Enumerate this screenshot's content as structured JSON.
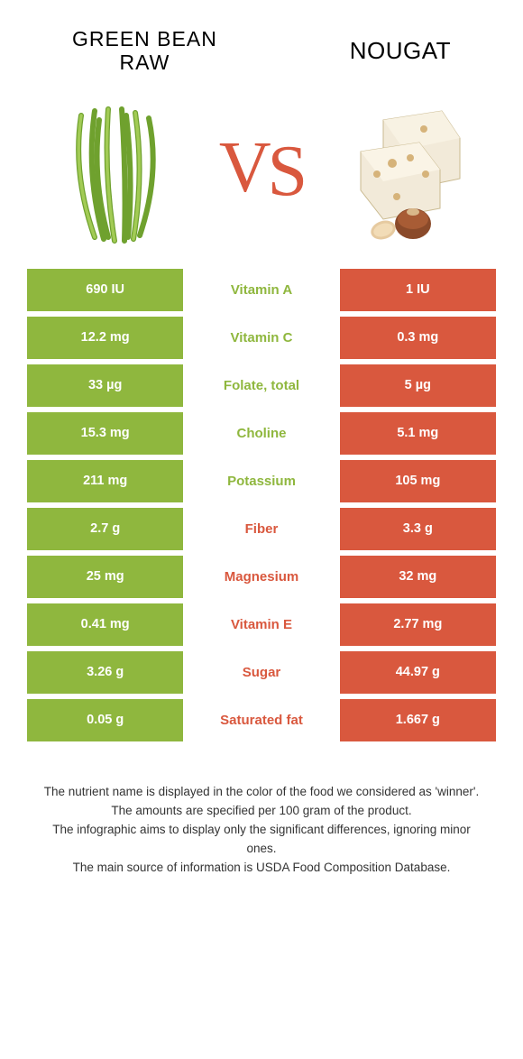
{
  "left": {
    "title_line1": "GREEN BEAN",
    "title_line2": "RAW",
    "title_color": "#2b2b2b",
    "cell_bg": "#8fb73e",
    "mid_winner_color": "#8fb73e"
  },
  "right": {
    "title_line1": "NOUGAT",
    "title_color": "#2b2b2b",
    "cell_bg": "#d9583e",
    "mid_winner_color": "#d9583e"
  },
  "vs": {
    "color": "#d9583e",
    "text_v": "V",
    "text_s": "S"
  },
  "rows": [
    {
      "left": "690 IU",
      "mid": "Vitamin A",
      "right": "1 IU",
      "winner": "left"
    },
    {
      "left": "12.2 mg",
      "mid": "Vitamin C",
      "right": "0.3 mg",
      "winner": "left"
    },
    {
      "left": "33 µg",
      "mid": "Folate, total",
      "right": "5 µg",
      "winner": "left"
    },
    {
      "left": "15.3 mg",
      "mid": "Choline",
      "right": "5.1 mg",
      "winner": "left"
    },
    {
      "left": "211 mg",
      "mid": "Potassium",
      "right": "105 mg",
      "winner": "left"
    },
    {
      "left": "2.7 g",
      "mid": "Fiber",
      "right": "3.3 g",
      "winner": "right"
    },
    {
      "left": "25 mg",
      "mid": "Magnesium",
      "right": "32 mg",
      "winner": "right"
    },
    {
      "left": "0.41 mg",
      "mid": "Vitamin E",
      "right": "2.77 mg",
      "winner": "right"
    },
    {
      "left": "3.26 g",
      "mid": "Sugar",
      "right": "44.97 g",
      "winner": "right"
    },
    {
      "left": "0.05 g",
      "mid": "Saturated fat",
      "right": "1.667 g",
      "winner": "right"
    }
  ],
  "footer": {
    "l1": "The nutrient name is displayed in the color of the food we considered as 'winner'.",
    "l2": "The amounts are specified per 100 gram of the product.",
    "l3": "The infographic aims to display only the significant differences, ignoring minor ones.",
    "l4": "The main source of information is USDA Food Composition Database."
  }
}
